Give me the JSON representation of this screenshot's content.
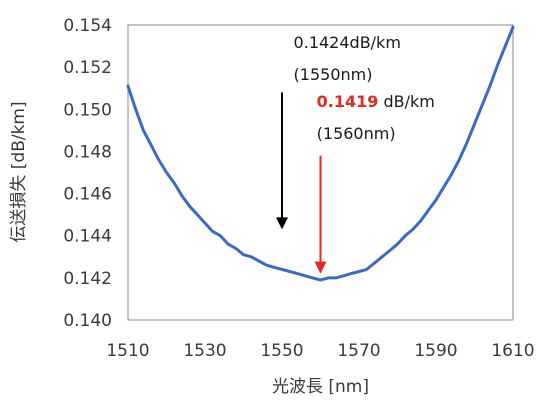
{
  "chart_data": {
    "type": "line",
    "xlabel": "光波長 [nm]",
    "ylabel": "伝送損失 [dB/km]",
    "xlim": [
      1510,
      1610
    ],
    "ylim": [
      0.14,
      0.154
    ],
    "x_ticks": [
      "1510",
      "1530",
      "1550",
      "1570",
      "1590",
      "1610"
    ],
    "y_ticks": [
      "0.140",
      "0.142",
      "0.144",
      "0.146",
      "0.148",
      "0.150",
      "0.152",
      "0.154"
    ],
    "grid": false,
    "series": [
      {
        "color": "#3a6bc4",
        "x": [
          1510,
          1512,
          1514,
          1516,
          1518,
          1520,
          1522,
          1524,
          1526,
          1528,
          1530,
          1532,
          1534,
          1536,
          1538,
          1540,
          1542,
          1544,
          1546,
          1548,
          1550,
          1552,
          1554,
          1556,
          1558,
          1560,
          1562,
          1564,
          1566,
          1568,
          1570,
          1572,
          1574,
          1576,
          1578,
          1580,
          1582,
          1584,
          1586,
          1588,
          1590,
          1592,
          1594,
          1596,
          1598,
          1600,
          1602,
          1604,
          1606,
          1608,
          1610
        ],
        "y": [
          0.1511,
          0.15,
          0.149,
          0.1483,
          0.1476,
          0.147,
          0.1465,
          0.1459,
          0.1454,
          0.145,
          0.1446,
          0.1442,
          0.144,
          0.1436,
          0.1434,
          0.1431,
          0.143,
          0.1428,
          0.1426,
          0.1425,
          0.1424,
          0.1423,
          0.1422,
          0.1421,
          0.142,
          0.1419,
          0.142,
          0.142,
          0.1421,
          0.1422,
          0.1423,
          0.1424,
          0.1427,
          0.143,
          0.1433,
          0.1436,
          0.144,
          0.1443,
          0.1447,
          0.1452,
          0.1457,
          0.1463,
          0.1469,
          0.1476,
          0.1484,
          0.1493,
          0.1502,
          0.1511,
          0.1521,
          0.153,
          0.1539
        ]
      }
    ],
    "annotations": [
      {
        "line1": "0.1424dB/km",
        "line2": "(1550nm)",
        "arrow_color": "#000000",
        "x": 1550,
        "y": 0.1424,
        "text_x": 1553,
        "text_y": 0.1529,
        "text_y2": 0.1514,
        "arrow_from_y": 0.1508,
        "arrow_to_y": 0.1443
      },
      {
        "value": "0.1419",
        "unit": " dB/km",
        "line2": "(1560nm)",
        "value_color": "#e8281e",
        "arrow_color": "#e8281e",
        "x": 1560,
        "y": 0.1419,
        "text_x": 1559,
        "text_y": 0.1501,
        "text_y2": 0.1486,
        "arrow_from_y": 0.1478,
        "arrow_to_y": 0.1422
      }
    ]
  }
}
